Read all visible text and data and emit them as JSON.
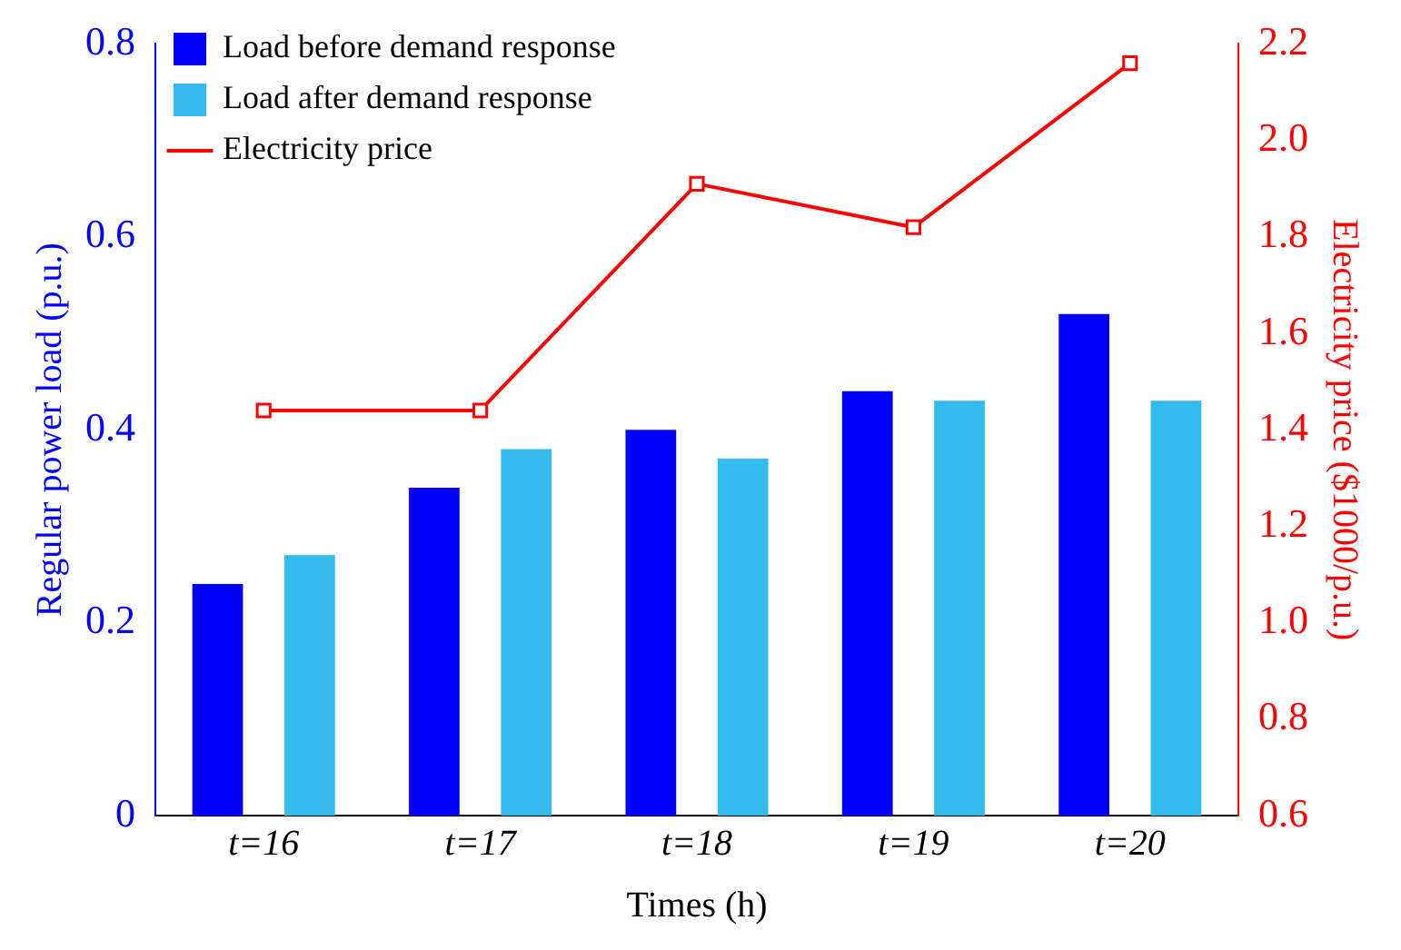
{
  "chart_data": {
    "type": "bar",
    "categories": [
      "t=16",
      "t=17",
      "t=18",
      "t=19",
      "t=20"
    ],
    "xlabel": "Times (h)",
    "ylabel": "Regular power load (p.u.)",
    "y2label": "Electricity price ($1000/p.u.)",
    "series": [
      {
        "name": "Load before demand response",
        "color": "#0000ff",
        "values": [
          0.24,
          0.34,
          0.4,
          0.44,
          0.52
        ]
      },
      {
        "name": "Load after demand response",
        "color": "#33bbee",
        "values": [
          0.27,
          0.38,
          0.37,
          0.43,
          0.43
        ]
      },
      {
        "name": "Electricity price",
        "type": "line",
        "axis": "y2",
        "color": "#ff0000",
        "marker": "square",
        "values": [
          1.44,
          1.44,
          1.91,
          1.82,
          2.16
        ]
      }
    ],
    "ylim": [
      0,
      0.8
    ],
    "yticks": [
      {
        "value": 0,
        "label": "0"
      },
      0.2,
      0.4,
      0.6,
      0.8
    ],
    "y2lim": [
      0.6,
      2.2
    ],
    "y2ticks": [
      0.6,
      0.8,
      {
        "value": 1,
        "label": "1.0"
      },
      1.2,
      1.4,
      1.6,
      1.8,
      {
        "value": 2,
        "label": "2.0"
      },
      2.2
    ],
    "grid": false,
    "legend": "top left"
  }
}
